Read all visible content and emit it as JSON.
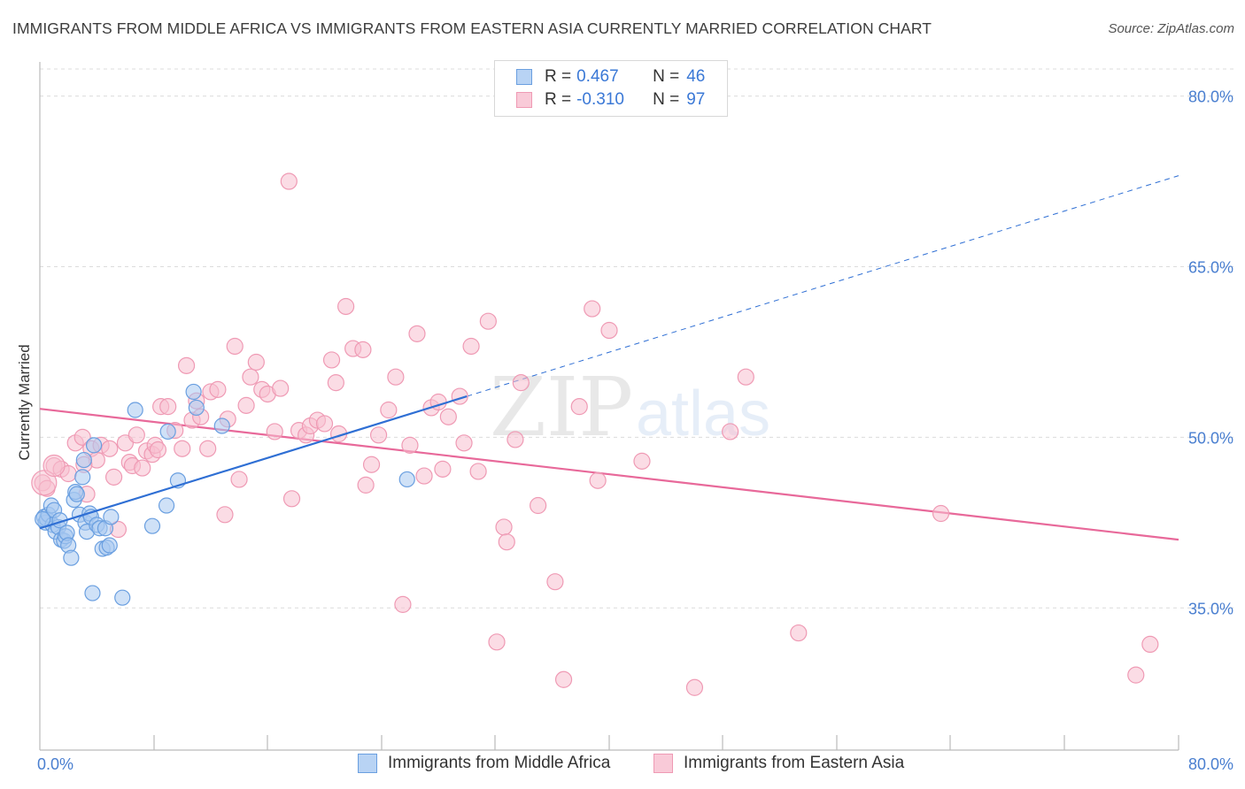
{
  "header": {
    "title": "IMMIGRANTS FROM MIDDLE AFRICA VS IMMIGRANTS FROM EASTERN ASIA CURRENTLY MARRIED CORRELATION CHART",
    "source": "Source: ZipAtlas.com"
  },
  "legend": {
    "series1": {
      "r_label": "R =",
      "r_value": "0.467",
      "n_label": "N =",
      "n_value": "46"
    },
    "series2": {
      "r_label": "R =",
      "r_value": "-0.310",
      "n_label": "N =",
      "n_value": "97"
    }
  },
  "bottom_legend": {
    "series1": "Immigrants from Middle Africa",
    "series2": "Immigrants from Eastern Asia"
  },
  "watermark": {
    "zip": "ZIP",
    "atlas": "atlas"
  },
  "colors": {
    "series1_fill": "#a8c8f0",
    "series1_stroke": "#6a9fe0",
    "series1_line": "#2f6fd4",
    "series2_fill": "#f7c0d0",
    "series2_stroke": "#ef9ab4",
    "series2_line": "#e8699a",
    "axis_label": "#4a7fd0",
    "grid": "#dcdcdc"
  },
  "chart_data": {
    "type": "scatter",
    "title": "IMMIGRANTS FROM MIDDLE AFRICA VS IMMIGRANTS FROM EASTERN ASIA CURRENTLY MARRIED CORRELATION CHART",
    "xlabel": "",
    "ylabel": "Currently Married",
    "x_tick_labels": [
      "0.0%",
      "80.0%"
    ],
    "y_tick_labels": [
      "80.0%",
      "65.0%",
      "50.0%",
      "35.0%"
    ],
    "y_ticks": [
      80,
      65,
      50,
      35
    ],
    "xlim": [
      0,
      80
    ],
    "ylim": [
      22.5,
      83
    ],
    "grid": true,
    "legend_position": "top-center",
    "series": [
      {
        "name": "Immigrants from Middle Africa",
        "trend": {
          "x": [
            0,
            30
          ],
          "y": [
            42.0,
            53.6
          ],
          "extended_to": {
            "x": 80,
            "y": 73.0
          }
        },
        "points": [
          [
            0.3,
            43.0
          ],
          [
            0.4,
            42.5
          ],
          [
            0.5,
            42.8
          ],
          [
            0.6,
            43.2
          ],
          [
            0.8,
            44.0
          ],
          [
            0.9,
            42.3
          ],
          [
            1.0,
            43.6
          ],
          [
            1.1,
            41.7
          ],
          [
            1.3,
            42.1
          ],
          [
            1.4,
            42.7
          ],
          [
            1.5,
            41.0
          ],
          [
            1.7,
            40.9
          ],
          [
            1.8,
            41.3
          ],
          [
            1.9,
            41.6
          ],
          [
            2.0,
            40.5
          ],
          [
            2.2,
            39.4
          ],
          [
            2.4,
            44.5
          ],
          [
            2.5,
            45.2
          ],
          [
            2.6,
            45.0
          ],
          [
            2.8,
            43.2
          ],
          [
            3.0,
            46.5
          ],
          [
            3.1,
            48.0
          ],
          [
            3.2,
            42.5
          ],
          [
            3.3,
            41.7
          ],
          [
            3.5,
            43.3
          ],
          [
            3.6,
            43.0
          ],
          [
            3.8,
            49.3
          ],
          [
            4.0,
            42.3
          ],
          [
            4.2,
            42.0
          ],
          [
            4.4,
            40.2
          ],
          [
            4.6,
            42.0
          ],
          [
            4.7,
            40.3
          ],
          [
            4.9,
            40.5
          ],
          [
            5.0,
            43.0
          ],
          [
            3.7,
            36.3
          ],
          [
            5.8,
            35.9
          ],
          [
            6.7,
            52.4
          ],
          [
            7.9,
            42.2
          ],
          [
            8.9,
            44.0
          ],
          [
            9.0,
            50.5
          ],
          [
            9.7,
            46.2
          ],
          [
            10.8,
            54.0
          ],
          [
            11.0,
            52.6
          ],
          [
            12.8,
            51.0
          ],
          [
            25.8,
            46.3
          ],
          [
            0.2,
            42.8
          ]
        ]
      },
      {
        "name": "Immigrants from Eastern Asia",
        "trend": {
          "x": [
            0,
            80
          ],
          "y": [
            52.5,
            41.0
          ]
        },
        "points": [
          [
            0.2,
            46.0
          ],
          [
            0.5,
            45.5
          ],
          [
            1.0,
            47.5
          ],
          [
            1.5,
            47.2
          ],
          [
            2.0,
            46.8
          ],
          [
            2.5,
            49.5
          ],
          [
            3.0,
            50.0
          ],
          [
            3.3,
            45.0
          ],
          [
            3.6,
            49.0
          ],
          [
            4.0,
            48.0
          ],
          [
            4.3,
            49.3
          ],
          [
            4.9,
            49.0
          ],
          [
            5.2,
            46.5
          ],
          [
            5.5,
            41.9
          ],
          [
            6.0,
            49.5
          ],
          [
            6.3,
            47.8
          ],
          [
            6.5,
            47.5
          ],
          [
            6.8,
            50.2
          ],
          [
            7.2,
            47.3
          ],
          [
            7.5,
            48.8
          ],
          [
            7.9,
            48.5
          ],
          [
            8.1,
            49.3
          ],
          [
            8.5,
            52.7
          ],
          [
            9.0,
            52.7
          ],
          [
            9.5,
            50.6
          ],
          [
            10.0,
            49.0
          ],
          [
            10.3,
            56.3
          ],
          [
            10.7,
            51.5
          ],
          [
            11.0,
            53.2
          ],
          [
            11.3,
            51.8
          ],
          [
            11.8,
            49.0
          ],
          [
            12.0,
            54.0
          ],
          [
            12.5,
            54.2
          ],
          [
            13.0,
            43.2
          ],
          [
            13.2,
            51.6
          ],
          [
            13.7,
            58.0
          ],
          [
            14.0,
            46.3
          ],
          [
            14.5,
            52.8
          ],
          [
            14.8,
            55.3
          ],
          [
            15.2,
            56.6
          ],
          [
            15.6,
            54.2
          ],
          [
            16.0,
            53.8
          ],
          [
            16.5,
            50.5
          ],
          [
            16.9,
            54.3
          ],
          [
            17.5,
            72.5
          ],
          [
            17.7,
            44.6
          ],
          [
            18.2,
            50.6
          ],
          [
            18.7,
            50.2
          ],
          [
            19.0,
            51.0
          ],
          [
            19.5,
            51.5
          ],
          [
            20.0,
            51.2
          ],
          [
            20.5,
            56.8
          ],
          [
            20.8,
            54.8
          ],
          [
            21.0,
            50.3
          ],
          [
            21.5,
            61.5
          ],
          [
            22.0,
            57.8
          ],
          [
            22.7,
            57.7
          ],
          [
            22.9,
            45.8
          ],
          [
            23.3,
            47.6
          ],
          [
            23.8,
            50.2
          ],
          [
            24.5,
            52.4
          ],
          [
            25.0,
            55.3
          ],
          [
            25.5,
            35.3
          ],
          [
            26.0,
            49.3
          ],
          [
            26.5,
            59.1
          ],
          [
            27.0,
            46.6
          ],
          [
            27.5,
            52.6
          ],
          [
            28.0,
            53.1
          ],
          [
            28.3,
            47.2
          ],
          [
            28.7,
            51.8
          ],
          [
            29.5,
            53.6
          ],
          [
            29.8,
            49.5
          ],
          [
            30.3,
            58.0
          ],
          [
            30.8,
            47.0
          ],
          [
            31.5,
            60.2
          ],
          [
            32.1,
            32.0
          ],
          [
            32.6,
            42.1
          ],
          [
            32.8,
            40.8
          ],
          [
            33.4,
            49.8
          ],
          [
            33.8,
            54.8
          ],
          [
            35.0,
            44.0
          ],
          [
            36.2,
            37.3
          ],
          [
            36.8,
            28.7
          ],
          [
            37.9,
            52.7
          ],
          [
            38.8,
            61.3
          ],
          [
            39.2,
            46.2
          ],
          [
            40.0,
            59.4
          ],
          [
            42.3,
            47.9
          ],
          [
            46.0,
            28.0
          ],
          [
            48.5,
            50.5
          ],
          [
            49.6,
            55.3
          ],
          [
            53.3,
            32.8
          ],
          [
            63.3,
            43.3
          ],
          [
            77.0,
            29.1
          ],
          [
            78.0,
            31.8
          ],
          [
            3.1,
            47.6
          ],
          [
            8.3,
            48.9
          ]
        ]
      }
    ]
  }
}
